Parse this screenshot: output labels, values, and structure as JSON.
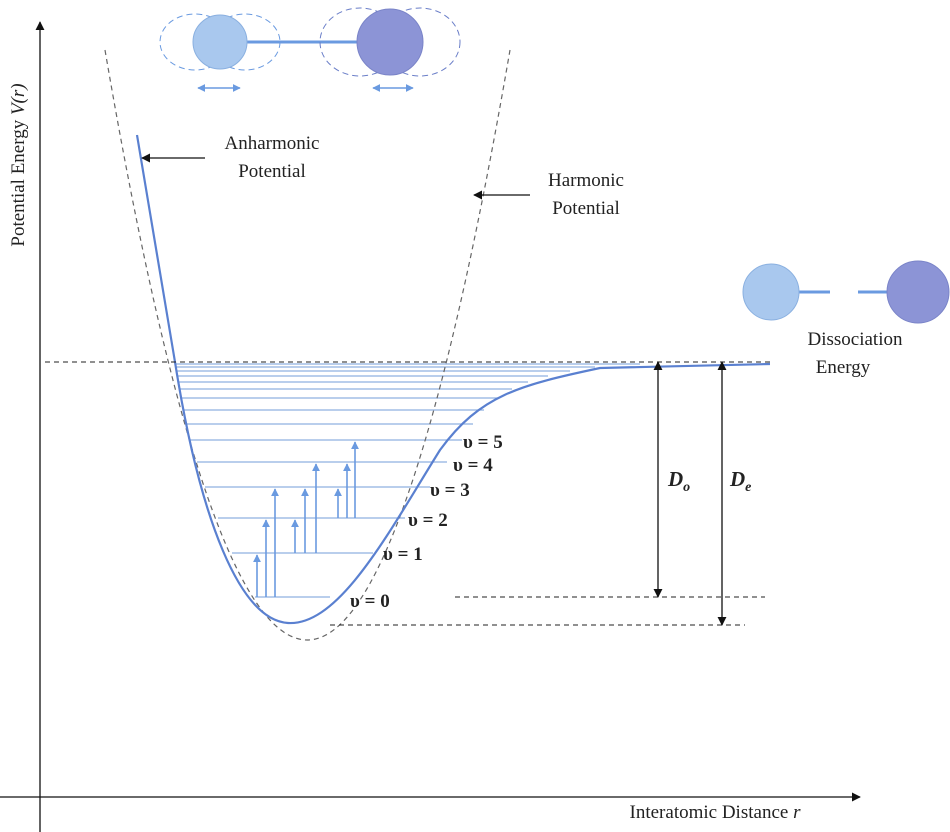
{
  "axes": {
    "y_label": {
      "text": "Potential Energy",
      "symbol": "V(r)"
    },
    "x_label": {
      "text": "Interatomic Distance",
      "symbol": "r"
    }
  },
  "annotations": {
    "anharmonic": [
      "Anharmonic",
      "Potential"
    ],
    "harmonic": [
      "Harmonic",
      "Potential"
    ],
    "dissociation": [
      "Dissociation",
      "Energy"
    ]
  },
  "levels": [
    "υ = 0",
    "υ = 1",
    "υ = 2",
    "υ = 3",
    "υ = 4",
    "υ = 5"
  ],
  "energies": [
    {
      "symbol": "D",
      "subscript": "o"
    },
    {
      "symbol": "D",
      "subscript": "e"
    }
  ]
}
